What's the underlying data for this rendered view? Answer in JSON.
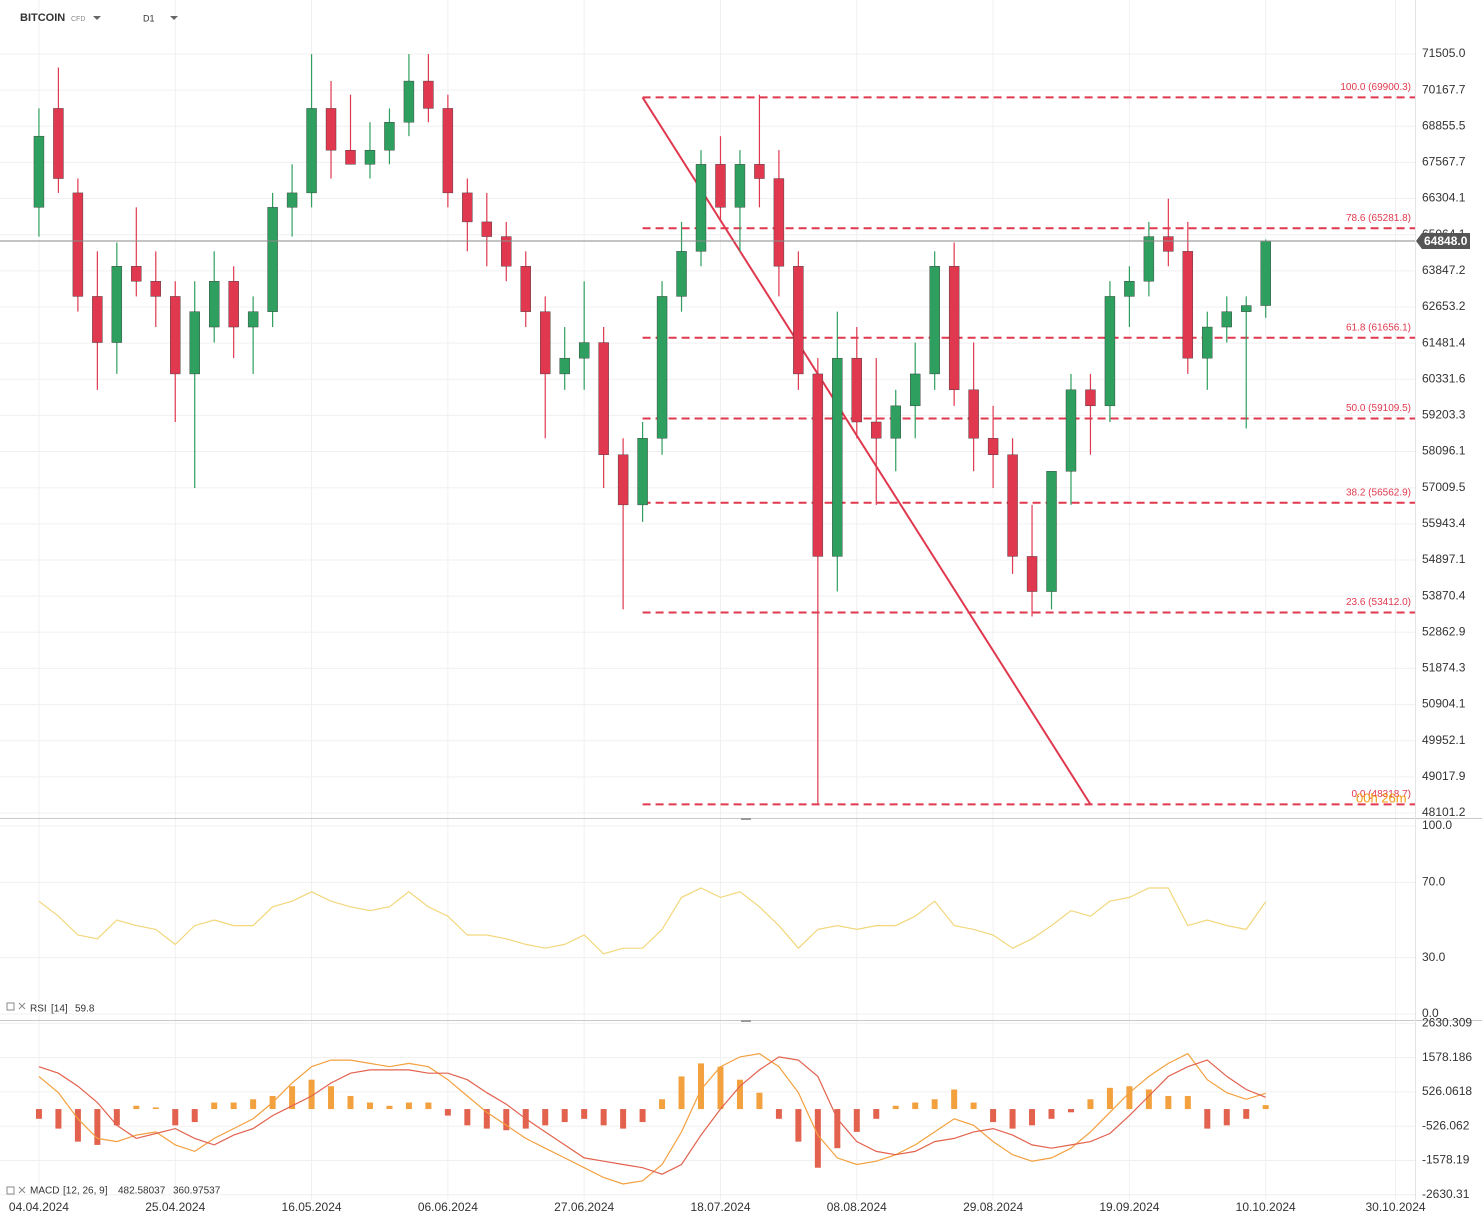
{
  "chart_data": {
    "type": "candlestick",
    "title": "BITCOIN",
    "subtitle": "CFD",
    "timeframe": "D1",
    "log": true,
    "grid": true,
    "up_color": "#2e9f5e",
    "down_color": "#e0394f",
    "x": [
      "04.04.2024",
      "07.04.2024",
      "10.04.2024",
      "13.04.2024",
      "16.04.2024",
      "19.04.2024",
      "22.04.2024",
      "25.04.2024",
      "28.04.2024",
      "01.05.2024",
      "04.05.2024",
      "07.05.2024",
      "10.05.2024",
      "13.05.2024",
      "16.05.2024",
      "19.05.2024",
      "22.05.2024",
      "25.05.2024",
      "28.05.2024",
      "31.05.2024",
      "03.06.2024",
      "06.06.2024",
      "09.06.2024",
      "12.06.2024",
      "15.06.2024",
      "18.06.2024",
      "21.06.2024",
      "24.06.2024",
      "27.06.2024",
      "30.06.2024",
      "03.07.2024",
      "06.07.2024",
      "09.07.2024",
      "12.07.2024",
      "15.07.2024",
      "18.07.2024",
      "21.07.2024",
      "24.07.2024",
      "27.07.2024",
      "30.07.2024",
      "02.08.2024",
      "05.08.2024",
      "08.08.2024",
      "11.08.2024",
      "14.08.2024",
      "17.08.2024",
      "20.08.2024",
      "23.08.2024",
      "26.08.2024",
      "29.08.2024",
      "01.09.2024",
      "04.09.2024",
      "07.09.2024",
      "10.09.2024",
      "13.09.2024",
      "16.09.2024",
      "19.09.2024",
      "22.09.2024",
      "25.09.2024",
      "28.09.2024",
      "01.10.2024",
      "04.10.2024",
      "07.10.2024",
      "10.10.2024"
    ],
    "open": [
      66000,
      69500,
      66500,
      63000,
      61500,
      64000,
      63500,
      63000,
      60500,
      62000,
      63500,
      62000,
      62500,
      66000,
      66500,
      69500,
      68000,
      67500,
      68000,
      69000,
      70500,
      69500,
      66500,
      65500,
      65000,
      64000,
      62500,
      60500,
      61000,
      61500,
      58000,
      56500,
      58500,
      63000,
      64500,
      67500,
      66000,
      67500,
      67000,
      64000,
      60500,
      55000,
      61000,
      59000,
      58500,
      59500,
      60500,
      64000,
      60000,
      58500,
      58000,
      55000,
      54000,
      57500,
      60000,
      59500,
      63000,
      63500,
      65000,
      64500,
      61000,
      62000,
      62500,
      62700
    ],
    "high": [
      69500,
      71000,
      67000,
      64500,
      64800,
      66000,
      64500,
      63500,
      63500,
      64500,
      64000,
      63000,
      66500,
      67500,
      71500,
      70500,
      70000,
      69000,
      69500,
      71500,
      71500,
      70000,
      67000,
      66500,
      65500,
      64500,
      63000,
      62000,
      63500,
      62000,
      58500,
      59000,
      63500,
      65500,
      68000,
      68500,
      68000,
      70000,
      68000,
      64500,
      61000,
      62500,
      62000,
      61000,
      60000,
      61500,
      64500,
      64800,
      61500,
      59500,
      58500,
      56500,
      57500,
      60500,
      60500,
      63500,
      64000,
      65500,
      66300,
      65500,
      62500,
      63000,
      63000,
      64900
    ],
    "low": [
      65000,
      66500,
      62500,
      60000,
      60500,
      63000,
      62000,
      59000,
      57000,
      61500,
      61000,
      60500,
      62000,
      65000,
      66000,
      67000,
      67500,
      67000,
      67500,
      68500,
      69000,
      66000,
      64500,
      64000,
      63500,
      62000,
      58500,
      60000,
      60000,
      57000,
      53500,
      56000,
      58000,
      62500,
      64000,
      65500,
      64500,
      66000,
      63000,
      60000,
      48300,
      54000,
      58500,
      56500,
      57500,
      58500,
      60000,
      59500,
      57500,
      57000,
      54500,
      53300,
      53500,
      56500,
      58000,
      59000,
      62000,
      63000,
      64000,
      60500,
      60000,
      61500,
      58800,
      62300
    ],
    "close": [
      68500,
      67000,
      63000,
      61500,
      64000,
      63500,
      63000,
      60500,
      62500,
      63500,
      62000,
      62500,
      66000,
      66500,
      69500,
      68000,
      67500,
      68000,
      69000,
      70500,
      69500,
      66500,
      65500,
      65000,
      64000,
      62500,
      60500,
      61000,
      61500,
      58000,
      56500,
      58500,
      63000,
      64500,
      67500,
      66000,
      67500,
      67000,
      64000,
      60500,
      55000,
      61000,
      59000,
      58500,
      59500,
      60500,
      64000,
      60000,
      58500,
      58000,
      55000,
      54000,
      57500,
      60000,
      59500,
      63000,
      63500,
      65000,
      64500,
      61000,
      62000,
      62500,
      62700,
      64848
    ],
    "ylim": [
      47976,
      73549
    ],
    "yticks": [
      {
        "value": 71505,
        "label": "71505.0"
      },
      70167.7,
      68855.5,
      67567.7,
      66304.1,
      65064.1,
      63847.2,
      62653.2,
      61481.4,
      60331.6,
      59203.3,
      58096.1,
      57009.5,
      55943.4,
      54897.1,
      53870.4,
      52862.9,
      51874.3,
      50904.1,
      49952.1,
      49017.9,
      48101.2
    ],
    "xlim": [
      "29.03.2024",
      "02.11.2024"
    ],
    "xticks": [
      "04.04.2024",
      "25.04.2024",
      "16.05.2024",
      "06.06.2024",
      "27.06.2024",
      "18.07.2024",
      "08.08.2024",
      "29.08.2024",
      "19.09.2024",
      "10.10.2024",
      "30.10.2024"
    ],
    "current_price": {
      "value": 64848,
      "label": "64848.0"
    },
    "level_color": "#e0394f",
    "levels": [
      {
        "value": 69900.3,
        "label": "100.0 (69900.3)"
      },
      {
        "value": 65281.8,
        "label": "78.6 (65281.8)"
      },
      {
        "value": 61656.1,
        "label": "61.8 (61656.1)"
      },
      {
        "value": 59109.5,
        "label": "50.0 (59109.5)"
      },
      {
        "value": 56562.9,
        "label": "38.2 (56562.9)"
      },
      {
        "value": 53412.0,
        "label": "23.6 (53412.0)"
      },
      {
        "value": 48318.7,
        "label": "0.0 (48318.7)"
      }
    ],
    "trendline": {
      "from": {
        "x": "06.07.2024",
        "y": 69900.3
      },
      "to": {
        "x": "13.09.2024",
        "y": 48318.7
      }
    },
    "countdown": "00h 26m",
    "indicators": [
      {
        "type": "line",
        "name": "RSI",
        "params": "[14]",
        "color": "#f2d77c",
        "values": [
          60,
          52,
          42,
          40,
          50,
          47,
          45,
          37,
          47,
          50,
          47,
          47,
          57,
          60,
          65,
          60,
          57,
          55,
          57,
          65,
          57,
          52,
          42,
          42,
          40,
          37,
          35,
          37,
          42,
          32,
          35,
          35,
          45,
          62,
          67,
          62,
          65,
          57,
          47,
          35,
          45,
          47,
          45,
          47,
          47,
          52,
          60,
          47,
          45,
          42,
          35,
          40,
          47,
          55,
          52,
          60,
          62,
          67,
          67,
          47,
          50,
          47,
          45,
          59.8
        ],
        "ylim": [
          0,
          100
        ],
        "yticks": [
          {
            "value": 100,
            "label": "100.0"
          },
          {
            "value": 70,
            "label": "70.0"
          },
          {
            "value": 30,
            "label": "30.0"
          },
          {
            "value": 0,
            "label": "0.0"
          }
        ]
      },
      {
        "type": "macd",
        "name": "MACD",
        "params": "[12, 26, 9]",
        "macd_color": "#f3a03f",
        "signal_color": "#e2624e",
        "hist_up_color": "#f3a03f",
        "hist_down_color": "#e2624e",
        "macd": [
          1000,
          500,
          -300,
          -900,
          -1000,
          -800,
          -700,
          -1100,
          -1300,
          -900,
          -600,
          -300,
          200,
          800,
          1300,
          1500,
          1500,
          1400,
          1300,
          1400,
          1300,
          900,
          400,
          -100,
          -500,
          -900,
          -1200,
          -1500,
          -1800,
          -2100,
          -2300,
          -2200,
          -1700,
          -700,
          600,
          1300,
          1600,
          1700,
          1300,
          500,
          -800,
          -1500,
          -1700,
          -1600,
          -1400,
          -1100,
          -700,
          -300,
          -500,
          -1000,
          -1400,
          -1600,
          -1500,
          -1200,
          -700,
          -100,
          500,
          1000,
          1400,
          1700,
          900,
          500,
          300,
          482.58037
        ],
        "signal": [
          1300,
          1100,
          700,
          200,
          -500,
          -900,
          -750,
          -600,
          -900,
          -1100,
          -800,
          -600,
          -200,
          100,
          400,
          800,
          1100,
          1200,
          1200,
          1200,
          1100,
          1100,
          900,
          500,
          150,
          -300,
          -700,
          -1100,
          -1500,
          -1600,
          -1700,
          -1800,
          -2000,
          -1700,
          -800,
          0,
          700,
          1200,
          1600,
          1500,
          1000,
          -300,
          -1000,
          -1300,
          -1400,
          -1300,
          -1000,
          -900,
          -700,
          -600,
          -800,
          -1100,
          -1200,
          -1100,
          -1000,
          -750,
          -200,
          400,
          1000,
          1300,
          1500,
          1000,
          600,
          360.97537
        ],
        "hist": [
          -300,
          -600,
          -1000,
          -1100,
          -500,
          100,
          50,
          -500,
          -400,
          200,
          200,
          300,
          400,
          700,
          900,
          700,
          400,
          200,
          100,
          200,
          200,
          -200,
          -500,
          -600,
          -650,
          -600,
          -500,
          -400,
          -300,
          -500,
          -600,
          -400,
          300,
          1000,
          1400,
          1300,
          900,
          500,
          -300,
          -1000,
          -1800,
          -1200,
          -700,
          -300,
          100,
          200,
          300,
          600,
          200,
          -400,
          -600,
          -500,
          -300,
          -100,
          300,
          650,
          700,
          600,
          400,
          400,
          -600,
          -500,
          -300,
          120
        ],
        "ylim": [
          -2790,
          2670
        ],
        "yticks": [
          2630.309,
          1578.186,
          526.0618,
          -526.062,
          -1578.19,
          -2630.31
        ]
      }
    ]
  }
}
